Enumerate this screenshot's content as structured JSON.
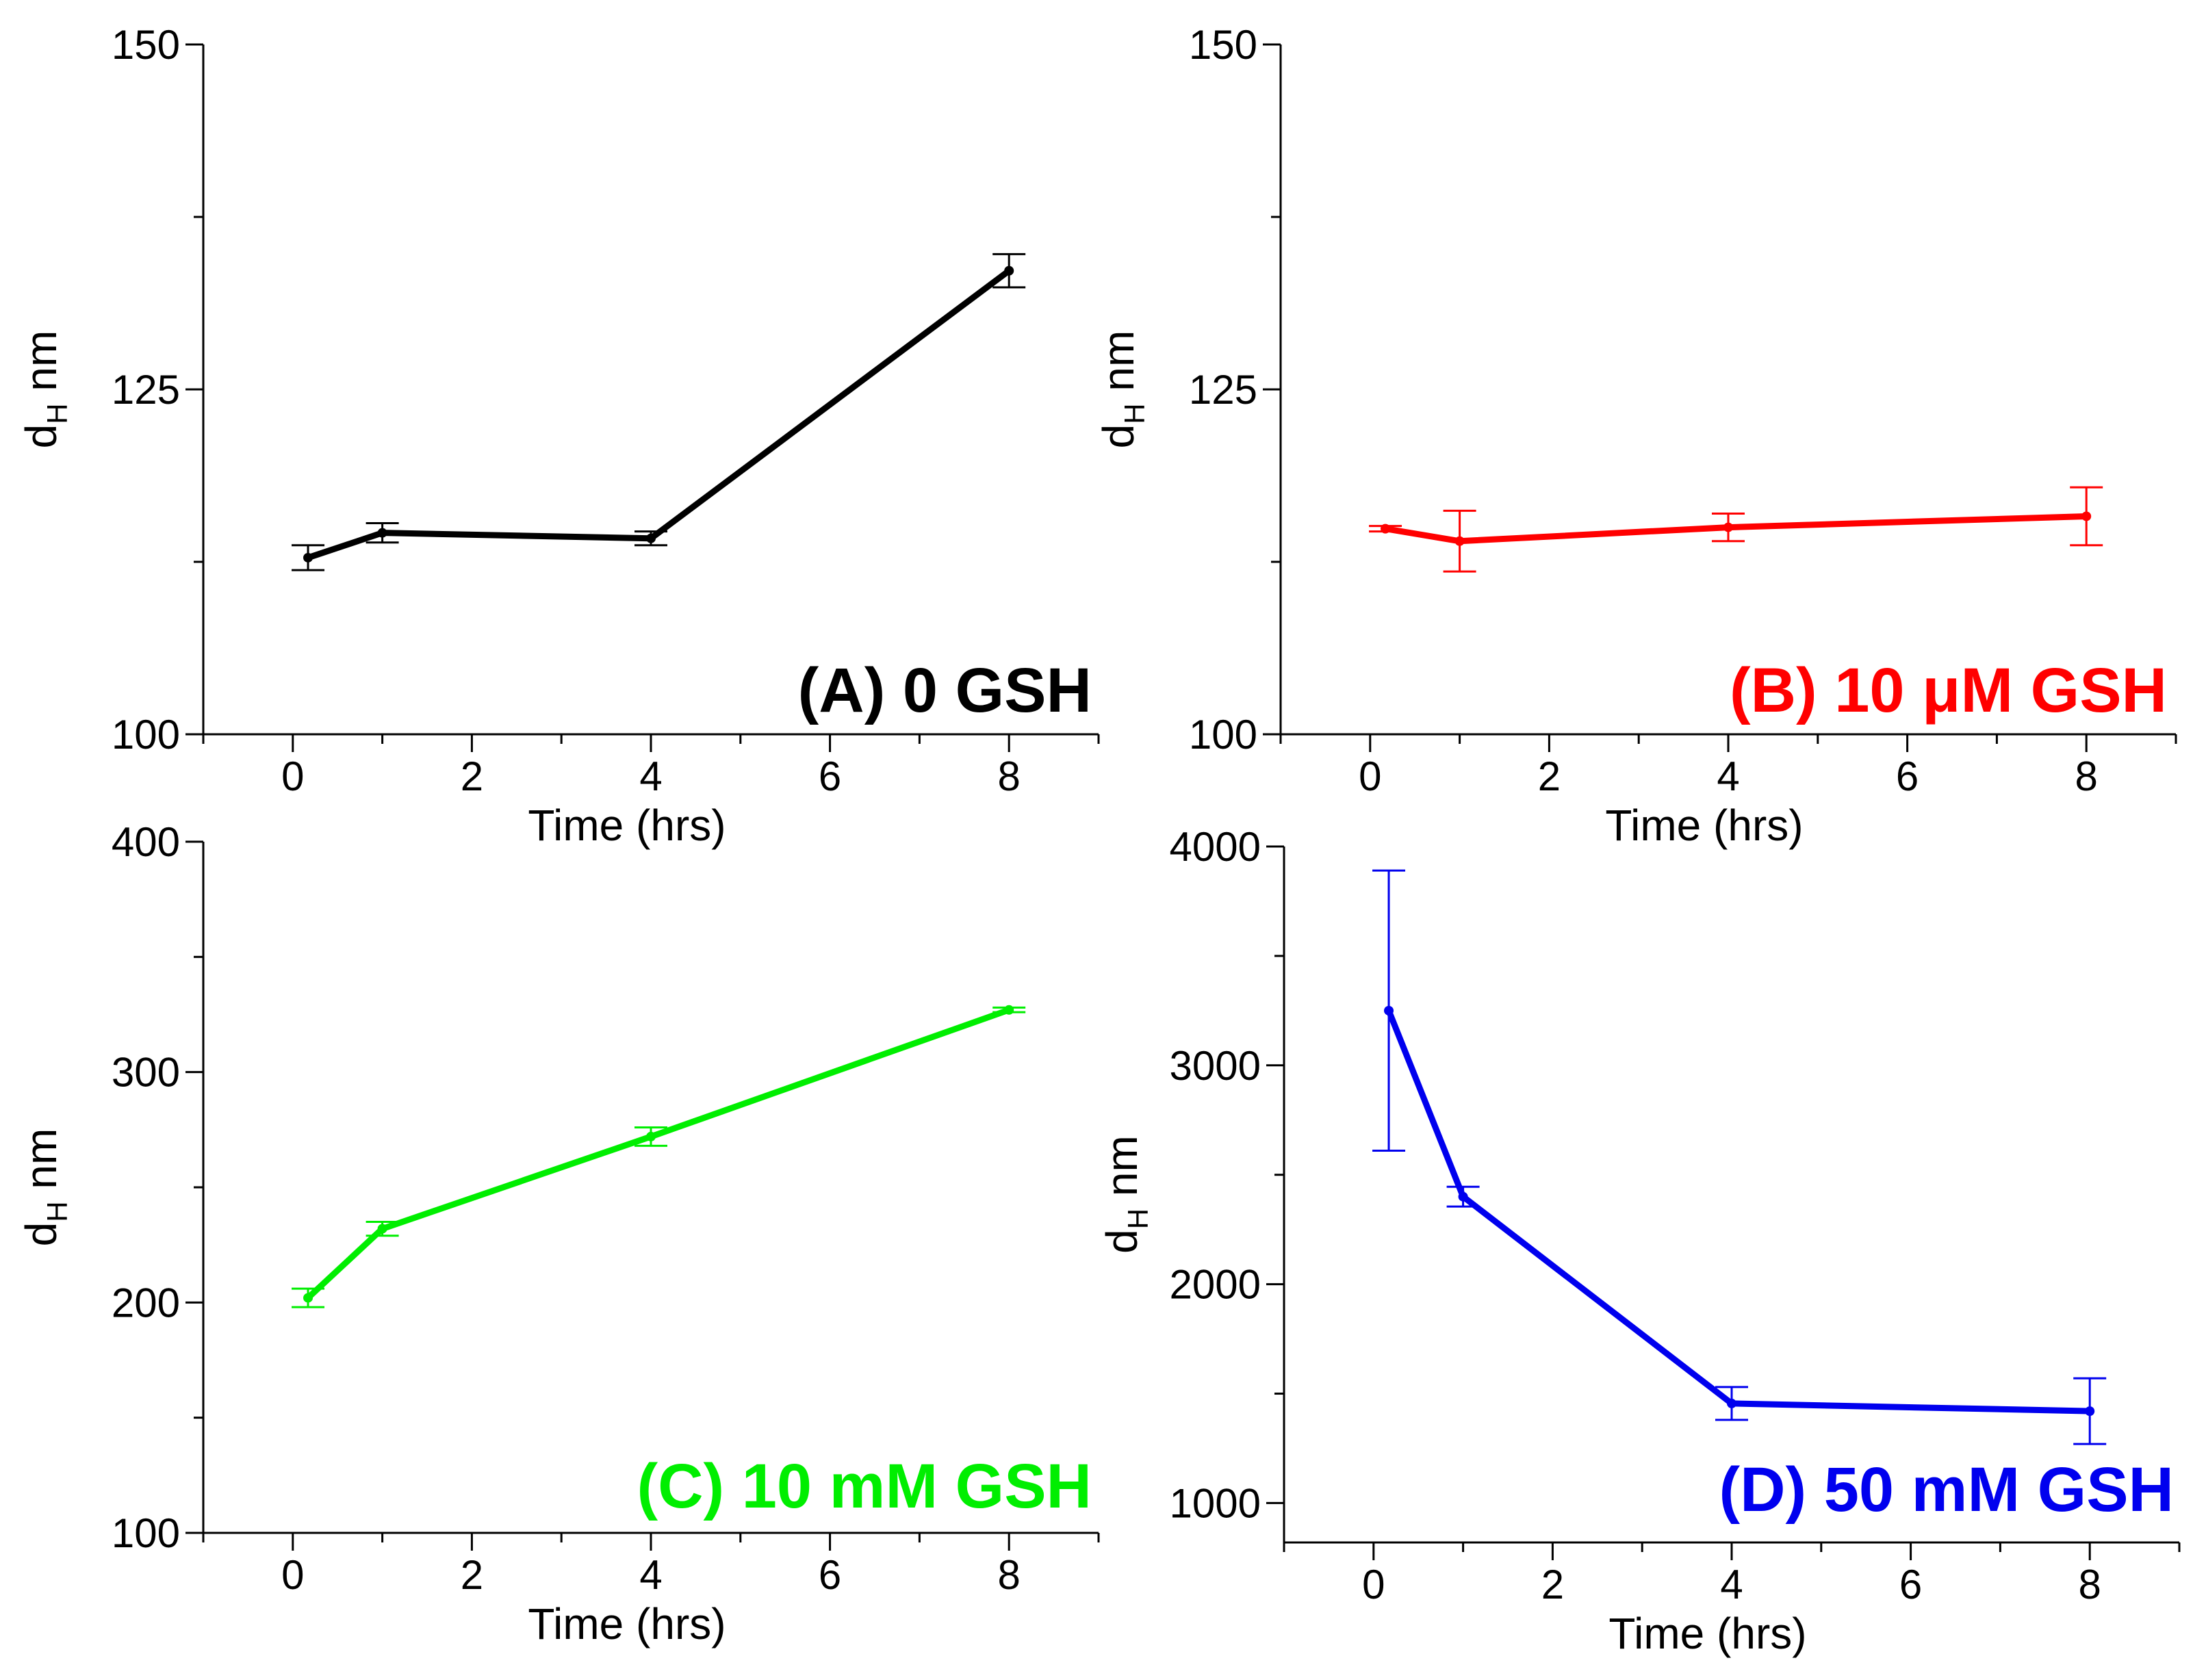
{
  "chart_data": [
    {
      "type": "line",
      "panel": "A",
      "title": "(A) 0 GSH",
      "color": "#000000",
      "xlabel": "Time (hrs)",
      "ylabel": "nm",
      "ylabel_symbol": "d",
      "ylabel_subscript": "H",
      "xlim": [
        -1,
        9
      ],
      "ylim": [
        100,
        150
      ],
      "xticks": [
        0,
        2,
        4,
        6,
        8
      ],
      "yticks": [
        100,
        125,
        150
      ],
      "series": [
        {
          "name": "0 GSH",
          "x": [
            0.17,
            1,
            4,
            8
          ],
          "y": [
            112.8,
            114.6,
            114.2,
            133.6
          ],
          "err": [
            0.9,
            0.7,
            0.5,
            1.2
          ]
        }
      ]
    },
    {
      "type": "line",
      "panel": "B",
      "title": "(B) 10 μM GSH",
      "color": "#ff0000",
      "xlabel": "Time (hrs)",
      "ylabel": "nm",
      "ylabel_symbol": "d",
      "ylabel_subscript": "H",
      "xlim": [
        -1,
        9
      ],
      "ylim": [
        100,
        150
      ],
      "xticks": [
        0,
        2,
        4,
        6,
        8
      ],
      "yticks": [
        100,
        125,
        150
      ],
      "series": [
        {
          "name": "10 μM GSH",
          "x": [
            0.17,
            1,
            4,
            8
          ],
          "y": [
            114.9,
            114.0,
            115.0,
            115.8
          ],
          "err": [
            0.2,
            2.2,
            1.0,
            2.1
          ]
        }
      ]
    },
    {
      "type": "line",
      "panel": "C",
      "title": "(C) 10 mM GSH",
      "color": "#00ee00",
      "xlabel": "Time (hrs)",
      "ylabel": "nm",
      "ylabel_symbol": "d",
      "ylabel_subscript": "H",
      "xlim": [
        -1,
        9
      ],
      "ylim": [
        100,
        400
      ],
      "xticks": [
        0,
        2,
        4,
        6,
        8
      ],
      "yticks": [
        100,
        200,
        300,
        400
      ],
      "series": [
        {
          "name": "10 mM GSH",
          "x": [
            0.17,
            1,
            4,
            8
          ],
          "y": [
            202,
            232,
            272,
            327
          ],
          "err": [
            4,
            3,
            4,
            1
          ]
        }
      ]
    },
    {
      "type": "line",
      "panel": "D",
      "title": "(D) 50 mM GSH",
      "color": "#0000ee",
      "xlabel": "Time (hrs)",
      "ylabel": "nm",
      "ylabel_symbol": "d",
      "ylabel_subscript": "H",
      "xlim": [
        -1,
        9
      ],
      "ylim": [
        820,
        4000
      ],
      "xticks": [
        0,
        2,
        4,
        6,
        8
      ],
      "yticks": [
        1000,
        2000,
        3000,
        4000
      ],
      "series": [
        {
          "name": "50 mM GSH",
          "x": [
            0.17,
            1,
            4,
            8
          ],
          "y": [
            3250,
            2400,
            1455,
            1420
          ],
          "err": [
            640,
            45,
            75,
            150
          ]
        }
      ]
    }
  ]
}
